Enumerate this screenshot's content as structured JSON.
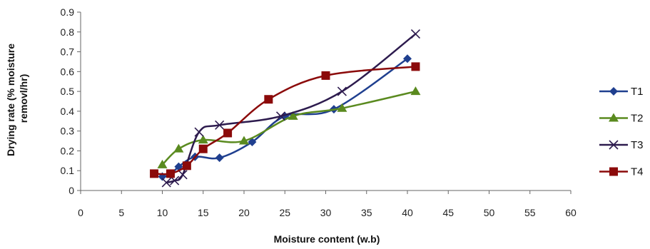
{
  "chart_data": {
    "type": "line",
    "smooth": true,
    "xlabel": "Moisture content (w.b)",
    "ylabel_lines": [
      "Drying rate (% moisture",
      "removl/hr)"
    ],
    "xlim": [
      0,
      60
    ],
    "ylim": [
      0,
      0.9
    ],
    "xticks": [
      0,
      5,
      10,
      15,
      20,
      25,
      30,
      35,
      40,
      45,
      50,
      55,
      60
    ],
    "yticks": [
      0,
      0.1,
      0.2,
      0.3,
      0.4,
      0.5,
      0.6,
      0.7,
      0.8,
      0.9
    ],
    "grid": false,
    "legend_position": "right",
    "series": [
      {
        "name": "T1",
        "color": "#1f3f8f",
        "marker": "diamond",
        "x": [
          10,
          11,
          12,
          14,
          17,
          21,
          25,
          31,
          40
        ],
        "y": [
          0.07,
          0.08,
          0.12,
          0.17,
          0.165,
          0.245,
          0.375,
          0.41,
          0.665
        ]
      },
      {
        "name": "T2",
        "color": "#5a8a1f",
        "marker": "triangle",
        "x": [
          10,
          12,
          15,
          20,
          26,
          32,
          41
        ],
        "y": [
          0.13,
          0.21,
          0.255,
          0.25,
          0.375,
          0.415,
          0.5
        ]
      },
      {
        "name": "T3",
        "color": "#2d1b4e",
        "marker": "x",
        "x": [
          10.5,
          11.5,
          12.5,
          14.5,
          17,
          24.5,
          32,
          41
        ],
        "y": [
          0.04,
          0.05,
          0.08,
          0.295,
          0.33,
          0.375,
          0.5,
          0.79
        ]
      },
      {
        "name": "T4",
        "color": "#8b0a0a",
        "marker": "square",
        "x": [
          9,
          11,
          13,
          15,
          18,
          23,
          30,
          41
        ],
        "y": [
          0.085,
          0.085,
          0.125,
          0.21,
          0.29,
          0.46,
          0.58,
          0.625
        ]
      }
    ]
  }
}
